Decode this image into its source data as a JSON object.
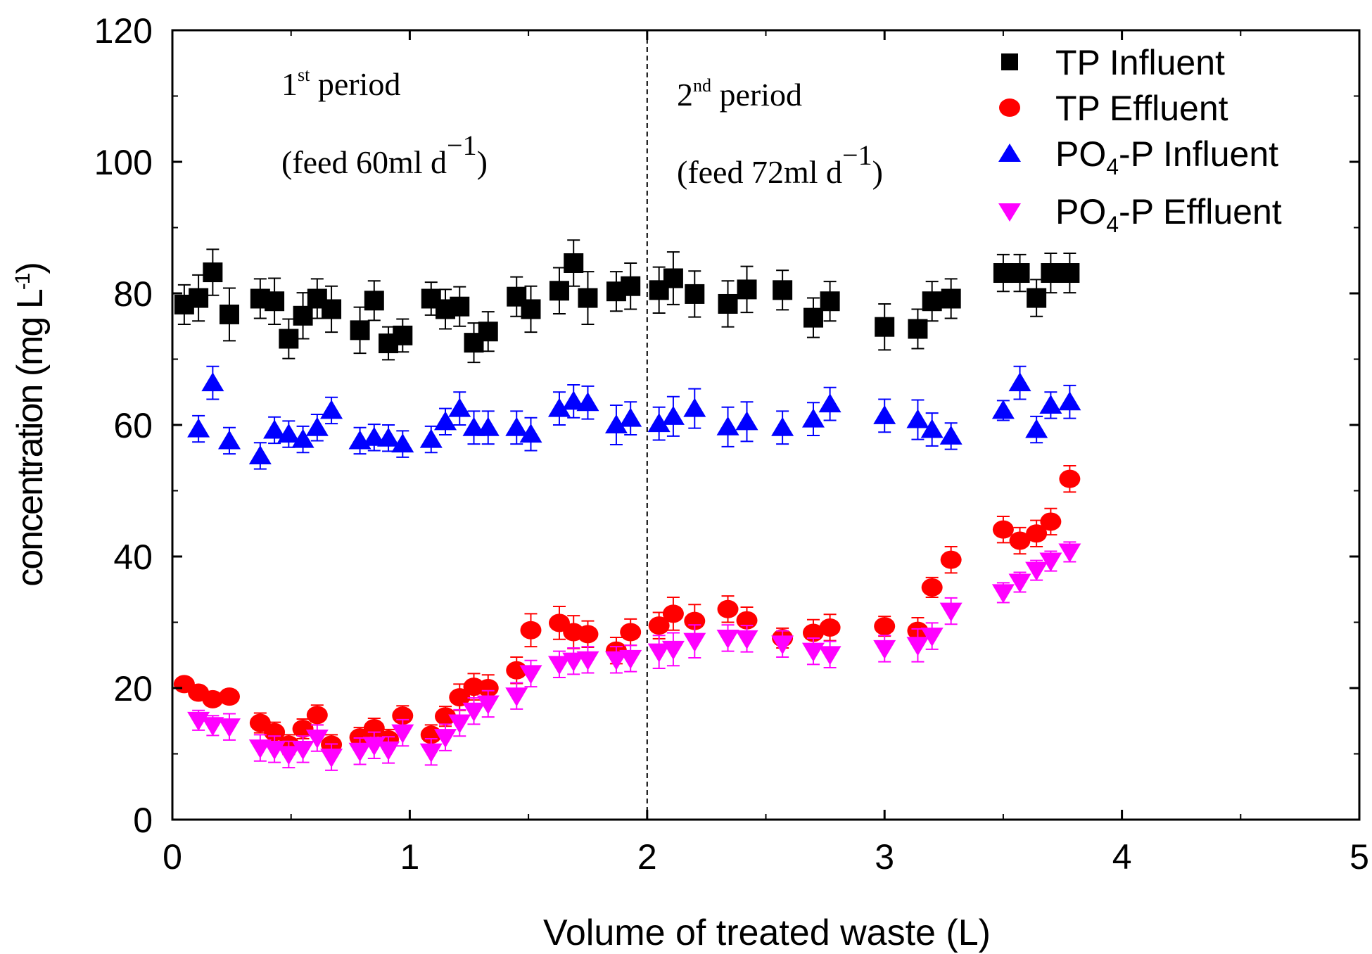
{
  "chart_data": {
    "type": "scatter",
    "title": "",
    "xlabel": "Volume of treated waste (L)",
    "ylabel": "concentration (mg L",
    "ylabel_sup": "-1",
    "ylabel_close": ")",
    "xlim": [
      0,
      5
    ],
    "ylim": [
      0,
      120
    ],
    "xticks": [
      0,
      1,
      2,
      3,
      4,
      5
    ],
    "yticks": [
      0,
      20,
      40,
      60,
      80,
      100,
      120
    ],
    "grid": false,
    "legend_position": "top-right",
    "divider_x": 2,
    "annotations": {
      "period1": {
        "label": "1",
        "sup": "st",
        "rest": " period",
        "feed_open": "(feed 60ml d",
        "feed_sup": "−1",
        "feed_close": ")"
      },
      "period2": {
        "label": "2",
        "sup": "nd",
        "rest": " period",
        "feed_open": "(feed 72ml d",
        "feed_sup": "−1",
        "feed_close": ")"
      }
    },
    "series": [
      {
        "name": "TP Influent",
        "name_main": "TP Influent",
        "name_sub": "",
        "name_rest": "",
        "marker": "square",
        "color": "#000000",
        "x": [
          0.05,
          0.11,
          0.17,
          0.24,
          0.37,
          0.43,
          0.49,
          0.55,
          0.61,
          0.67,
          0.79,
          0.85,
          0.91,
          0.97,
          1.09,
          1.15,
          1.21,
          1.27,
          1.33,
          1.45,
          1.51,
          1.63,
          1.69,
          1.75,
          1.87,
          1.93,
          2.05,
          2.11,
          2.2,
          2.34,
          2.42,
          2.57,
          2.7,
          2.77,
          3.0,
          3.14,
          3.2,
          3.28,
          3.5,
          3.57,
          3.64,
          3.7,
          3.78
        ],
        "y": [
          78.3,
          79.3,
          83.2,
          76.8,
          79.2,
          78.8,
          73.1,
          76.6,
          79.2,
          77.6,
          74.4,
          78.9,
          72.4,
          73.6,
          79.2,
          77.6,
          78.0,
          72.5,
          74.2,
          79.5,
          77.6,
          80.4,
          84.6,
          79.3,
          80.3,
          81.1,
          80.5,
          82.3,
          79.9,
          78.4,
          80.6,
          80.5,
          76.3,
          78.8,
          74.9,
          74.6,
          78.8,
          79.2,
          83.1,
          83.1,
          79.3,
          83.1,
          83.1
        ],
        "err": [
          3,
          3.5,
          3.5,
          4,
          3,
          3.5,
          3,
          3.5,
          3,
          3.5,
          3.5,
          3,
          2.5,
          2.5,
          2.5,
          3,
          3,
          3,
          3,
          3,
          3.5,
          3.5,
          3.5,
          4,
          3,
          3.5,
          3.5,
          4,
          3.5,
          3.5,
          3.5,
          3,
          3,
          3,
          3.5,
          3,
          3,
          3,
          2.8,
          2.8,
          2.8,
          3,
          3
        ]
      },
      {
        "name": "TP Effluent",
        "name_main": "TP Effluent",
        "name_sub": "",
        "name_rest": "",
        "marker": "circle",
        "color": "#ff0000",
        "x": [
          0.05,
          0.11,
          0.17,
          0.24,
          0.37,
          0.43,
          0.49,
          0.55,
          0.61,
          0.67,
          0.79,
          0.85,
          0.91,
          0.97,
          1.09,
          1.15,
          1.21,
          1.27,
          1.33,
          1.45,
          1.51,
          1.63,
          1.69,
          1.75,
          1.87,
          1.93,
          2.05,
          2.11,
          2.2,
          2.34,
          2.42,
          2.57,
          2.7,
          2.77,
          3.0,
          3.14,
          3.2,
          3.28,
          3.5,
          3.57,
          3.64,
          3.7,
          3.78
        ],
        "y": [
          20.6,
          19.3,
          18.3,
          18.7,
          14.7,
          13.3,
          11.4,
          13.8,
          15.9,
          11.4,
          12.5,
          13.9,
          12.2,
          15.8,
          12.9,
          15.7,
          18.6,
          20.2,
          20.0,
          22.7,
          28.8,
          29.9,
          28.5,
          28.2,
          25.7,
          28.5,
          29.5,
          31.3,
          30.2,
          32.0,
          30.3,
          27.6,
          28.4,
          29.2,
          29.4,
          28.7,
          35.3,
          39.5,
          44.1,
          42.4,
          43.5,
          45.3,
          51.8
        ],
        "err": [
          1,
          1,
          1,
          1,
          1.5,
          1.5,
          1.5,
          1.5,
          1.5,
          1.5,
          1.5,
          1.5,
          1.5,
          1.5,
          1.5,
          1.5,
          2,
          2,
          2,
          2,
          2.5,
          2.5,
          2.5,
          2,
          2,
          2,
          2,
          2.5,
          2.5,
          2,
          2,
          1.5,
          2,
          2,
          1.5,
          2,
          1.5,
          2,
          2,
          2,
          2,
          2,
          2
        ]
      },
      {
        "name": "PO4-P Influent",
        "name_main": "PO",
        "name_sub": "4",
        "name_rest": "-P Influent",
        "marker": "triangle-up",
        "color": "#0000ff",
        "x": [
          0.11,
          0.17,
          0.24,
          0.37,
          0.43,
          0.49,
          0.55,
          0.61,
          0.67,
          0.79,
          0.85,
          0.91,
          0.97,
          1.09,
          1.15,
          1.21,
          1.27,
          1.33,
          1.45,
          1.51,
          1.63,
          1.69,
          1.75,
          1.87,
          1.93,
          2.05,
          2.11,
          2.2,
          2.34,
          2.42,
          2.57,
          2.7,
          2.77,
          3.0,
          3.14,
          3.2,
          3.28,
          3.5,
          3.57,
          3.64,
          3.7,
          3.78
        ],
        "y": [
          59.4,
          66.4,
          57.6,
          55.3,
          59.2,
          58.6,
          57.8,
          59.6,
          62.2,
          57.6,
          58.1,
          58.0,
          57.1,
          57.8,
          60.5,
          62.5,
          59.6,
          59.6,
          59.6,
          58.6,
          62.5,
          63.6,
          63.4,
          60.0,
          61.0,
          60.2,
          61.3,
          62.5,
          59.7,
          60.5,
          59.6,
          60.9,
          63.2,
          61.4,
          60.8,
          59.3,
          58.3,
          62.2,
          66.4,
          59.3,
          63.0,
          63.5
        ],
        "err": [
          2,
          2.5,
          2,
          2,
          2,
          2,
          2,
          2,
          2,
          2,
          2,
          2,
          2,
          2,
          2,
          2.5,
          2.5,
          2.5,
          2.5,
          2.5,
          2.5,
          2.5,
          2.5,
          3,
          2.5,
          2.5,
          3,
          3,
          3,
          3,
          2.5,
          2.5,
          2.5,
          2.5,
          3,
          2.5,
          2,
          1.5,
          2.5,
          2,
          2,
          2.5
        ]
      },
      {
        "name": "PO4-P Effluent",
        "name_main": "PO",
        "name_sub": "4",
        "name_rest": "-P Effluent",
        "marker": "triangle-down",
        "color": "#ff00ff",
        "x": [
          0.11,
          0.17,
          0.24,
          0.37,
          0.43,
          0.49,
          0.55,
          0.61,
          0.67,
          0.79,
          0.85,
          0.91,
          0.97,
          1.09,
          1.15,
          1.21,
          1.27,
          1.33,
          1.45,
          1.51,
          1.63,
          1.69,
          1.75,
          1.87,
          1.93,
          2.05,
          2.11,
          2.2,
          2.34,
          2.42,
          2.57,
          2.7,
          2.77,
          3.0,
          3.14,
          3.2,
          3.28,
          3.5,
          3.57,
          3.64,
          3.7,
          3.78
        ],
        "y": [
          15.1,
          14.3,
          14.1,
          10.9,
          10.7,
          9.9,
          10.7,
          12.4,
          9.5,
          10.4,
          11.3,
          10.6,
          13.2,
          10.3,
          12.5,
          14.7,
          16.5,
          17.6,
          18.8,
          22.2,
          23.6,
          24.1,
          24.3,
          24.3,
          24.5,
          25.5,
          25.9,
          27.1,
          27.6,
          27.5,
          26.7,
          25.6,
          25.1,
          26.0,
          26.5,
          27.9,
          31.7,
          34.5,
          36.1,
          37.9,
          39.3,
          40.7
        ],
        "err": [
          1.5,
          1.5,
          2,
          2,
          2,
          2,
          2,
          2,
          2,
          2,
          2,
          2,
          2,
          2,
          2,
          2,
          2,
          2,
          2,
          2,
          2,
          2,
          2,
          2,
          2,
          2.5,
          2.5,
          2.5,
          2,
          2,
          2,
          2,
          2,
          2,
          2.5,
          2,
          2,
          1.5,
          1.5,
          1.5,
          1.5,
          1.5
        ]
      }
    ]
  }
}
